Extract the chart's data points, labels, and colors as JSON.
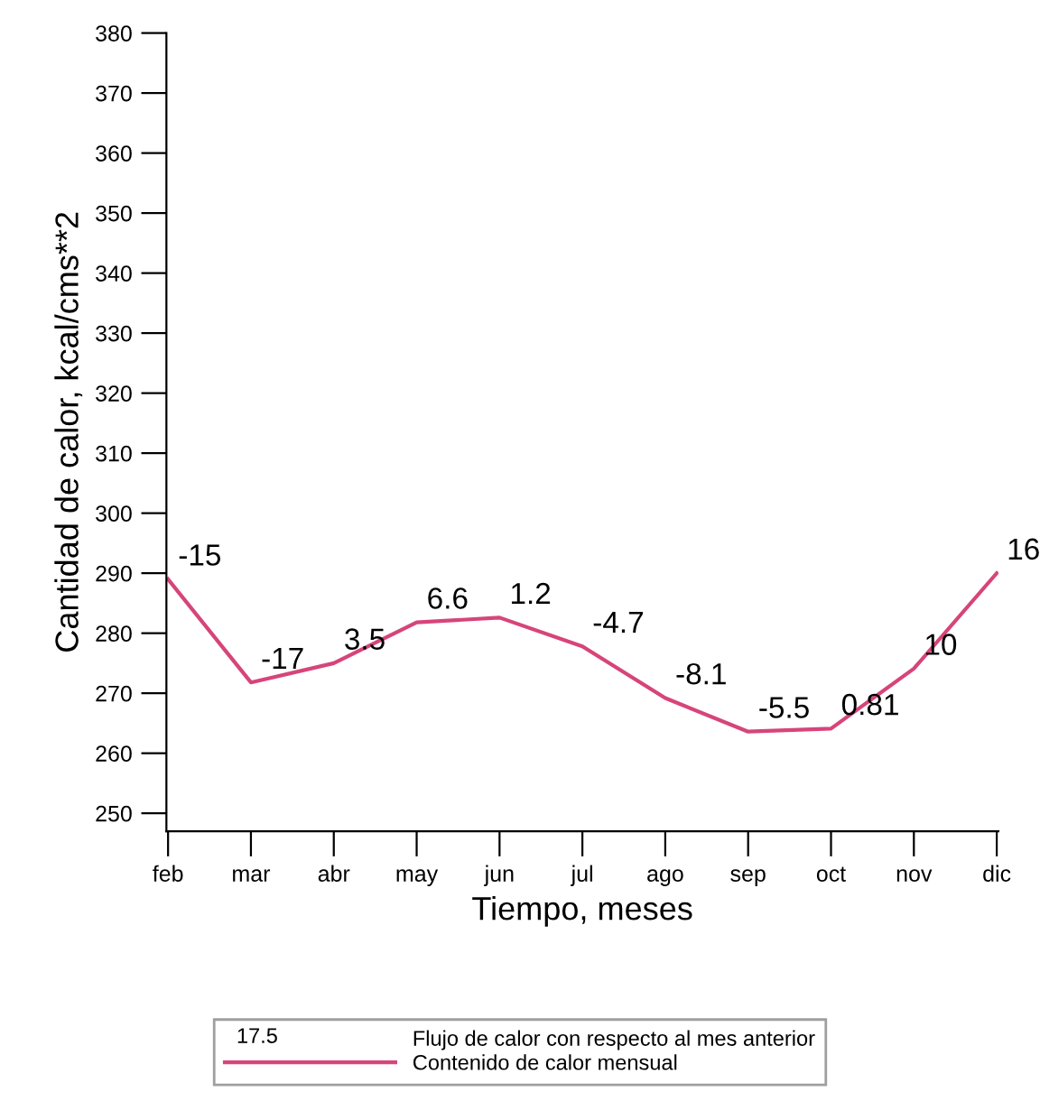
{
  "chart_data": {
    "type": "line",
    "xlabel": "Tiempo, meses",
    "ylabel": "Cantidad de calor, kcal/cms**2",
    "categories": [
      "feb",
      "mar",
      "abr",
      "may",
      "jun",
      "jul",
      "ago",
      "sep",
      "oct",
      "nov",
      "dic"
    ],
    "series": [
      {
        "name": "Contenido de calor mensual",
        "color": "#d6457a",
        "values": [
          289,
          271.8,
          275,
          281.8,
          282.6,
          277.8,
          269.2,
          263.6,
          264.1,
          274.1,
          290
        ]
      }
    ],
    "ylim": [
      247,
      380
    ],
    "yticks": [
      250,
      260,
      270,
      280,
      290,
      300,
      310,
      320,
      330,
      340,
      350,
      360,
      370,
      380
    ],
    "annotations": [
      {
        "text": "-15",
        "x": "feb",
        "y": 289
      },
      {
        "text": "-17",
        "x": "mar",
        "y": 271.8
      },
      {
        "text": "3.5",
        "x": "abr",
        "y": 275
      },
      {
        "text": "6.6",
        "x": "may",
        "y": 281.8
      },
      {
        "text": "1.2",
        "x": "jun",
        "y": 282.6
      },
      {
        "text": "-4.7",
        "x": "jul",
        "y": 277.8
      },
      {
        "text": "-8.1",
        "x": "ago",
        "y": 269.2
      },
      {
        "text": "-5.5",
        "x": "sep",
        "y": 263.6
      },
      {
        "text": "0.81",
        "x": "oct",
        "y": 264.1
      },
      {
        "text": "10",
        "x": "nov",
        "y": 274.1
      },
      {
        "text": "16",
        "x": "dic",
        "y": 290
      },
      "17.5",
      "Flujo de calor con respecto al mes anterior"
    ],
    "legend": "bottom",
    "grid": false,
    "marker": "none",
    "line_style": "solid"
  }
}
